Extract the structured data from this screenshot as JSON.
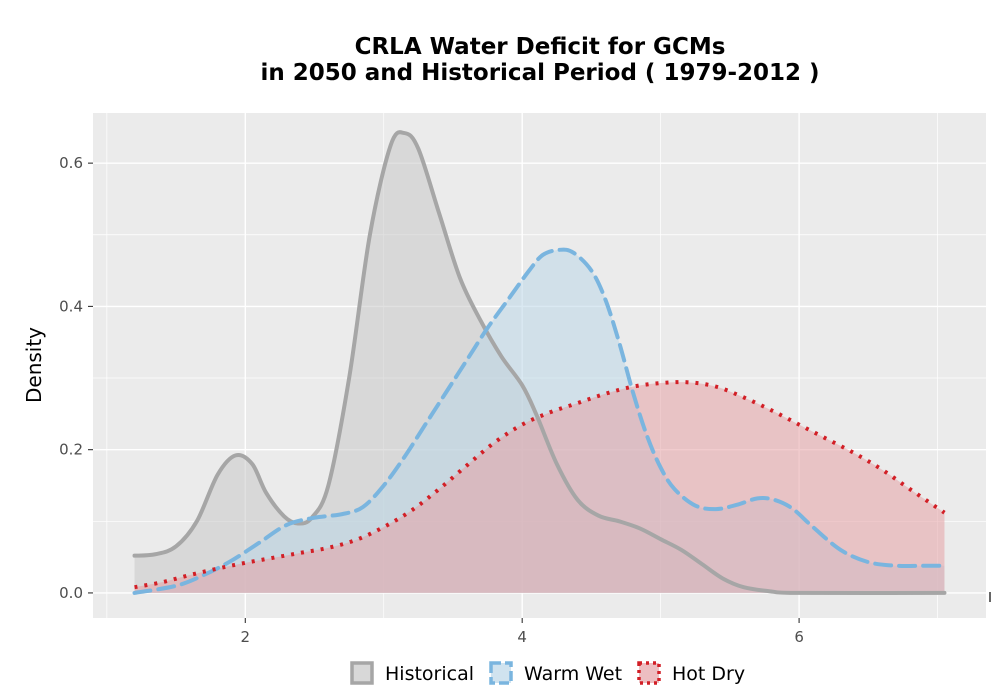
{
  "chart_data": {
    "type": "area",
    "title_line1": "CRLA  Water Deficit for GCMs",
    "title_line2": "in 2050 and Historical Period ( 1979-2012 )",
    "xlabel": "",
    "ylabel": "Density",
    "xlim": [
      0.9,
      7.35
    ],
    "ylim": [
      -0.035,
      0.67
    ],
    "x_ticks": [
      2,
      4,
      6
    ],
    "y_ticks": [
      0.0,
      0.2,
      0.4,
      0.6
    ],
    "x_tick_labels": [
      "2",
      "4",
      "6"
    ],
    "y_tick_labels": [
      "0.0",
      "0.2",
      "0.4",
      "0.6"
    ],
    "grid": true,
    "legend_position": "bottom",
    "series": [
      {
        "name": "Historical",
        "fill": "#c8c8c8",
        "line": "#a6a6a6",
        "linestyle": "solid",
        "points": [
          [
            1.2,
            0.052
          ],
          [
            1.35,
            0.054
          ],
          [
            1.5,
            0.065
          ],
          [
            1.65,
            0.1
          ],
          [
            1.8,
            0.165
          ],
          [
            1.93,
            0.192
          ],
          [
            2.05,
            0.18
          ],
          [
            2.15,
            0.14
          ],
          [
            2.28,
            0.107
          ],
          [
            2.38,
            0.097
          ],
          [
            2.48,
            0.105
          ],
          [
            2.6,
            0.15
          ],
          [
            2.75,
            0.3
          ],
          [
            2.9,
            0.5
          ],
          [
            3.05,
            0.625
          ],
          [
            3.15,
            0.642
          ],
          [
            3.25,
            0.62
          ],
          [
            3.4,
            0.53
          ],
          [
            3.55,
            0.44
          ],
          [
            3.7,
            0.38
          ],
          [
            3.85,
            0.33
          ],
          [
            4.0,
            0.29
          ],
          [
            4.1,
            0.25
          ],
          [
            4.25,
            0.18
          ],
          [
            4.4,
            0.13
          ],
          [
            4.55,
            0.108
          ],
          [
            4.7,
            0.1
          ],
          [
            4.85,
            0.09
          ],
          [
            5.0,
            0.075
          ],
          [
            5.15,
            0.06
          ],
          [
            5.3,
            0.04
          ],
          [
            5.45,
            0.02
          ],
          [
            5.6,
            0.008
          ],
          [
            5.8,
            0.002
          ],
          [
            6.0,
            0.0
          ],
          [
            7.05,
            0.0
          ]
        ]
      },
      {
        "name": "Warm Wet",
        "fill": "#bcd7e8",
        "line": "#7ab5df",
        "linestyle": "dashed",
        "points": [
          [
            1.2,
            0.0
          ],
          [
            1.5,
            0.01
          ],
          [
            1.7,
            0.025
          ],
          [
            1.9,
            0.045
          ],
          [
            2.1,
            0.07
          ],
          [
            2.3,
            0.095
          ],
          [
            2.5,
            0.105
          ],
          [
            2.7,
            0.11
          ],
          [
            2.85,
            0.12
          ],
          [
            3.0,
            0.15
          ],
          [
            3.15,
            0.19
          ],
          [
            3.3,
            0.235
          ],
          [
            3.45,
            0.28
          ],
          [
            3.6,
            0.325
          ],
          [
            3.75,
            0.37
          ],
          [
            3.9,
            0.41
          ],
          [
            4.05,
            0.45
          ],
          [
            4.15,
            0.472
          ],
          [
            4.27,
            0.479
          ],
          [
            4.37,
            0.475
          ],
          [
            4.5,
            0.45
          ],
          [
            4.6,
            0.41
          ],
          [
            4.7,
            0.35
          ],
          [
            4.8,
            0.28
          ],
          [
            4.9,
            0.22
          ],
          [
            5.0,
            0.175
          ],
          [
            5.1,
            0.145
          ],
          [
            5.25,
            0.122
          ],
          [
            5.4,
            0.117
          ],
          [
            5.55,
            0.123
          ],
          [
            5.7,
            0.132
          ],
          [
            5.82,
            0.13
          ],
          [
            5.95,
            0.118
          ],
          [
            6.1,
            0.092
          ],
          [
            6.3,
            0.06
          ],
          [
            6.5,
            0.043
          ],
          [
            6.7,
            0.038
          ],
          [
            6.9,
            0.038
          ],
          [
            7.05,
            0.038
          ]
        ]
      },
      {
        "name": "Hot Dry",
        "fill": "#e5a3a6",
        "line": "#d21f26",
        "linestyle": "dotted",
        "points": [
          [
            1.2,
            0.008
          ],
          [
            1.4,
            0.015
          ],
          [
            1.6,
            0.025
          ],
          [
            1.8,
            0.034
          ],
          [
            2.0,
            0.042
          ],
          [
            2.2,
            0.049
          ],
          [
            2.4,
            0.056
          ],
          [
            2.6,
            0.063
          ],
          [
            2.8,
            0.074
          ],
          [
            3.0,
            0.092
          ],
          [
            3.2,
            0.115
          ],
          [
            3.4,
            0.145
          ],
          [
            3.6,
            0.178
          ],
          [
            3.8,
            0.21
          ],
          [
            4.0,
            0.235
          ],
          [
            4.2,
            0.252
          ],
          [
            4.4,
            0.265
          ],
          [
            4.6,
            0.278
          ],
          [
            4.8,
            0.288
          ],
          [
            5.0,
            0.293
          ],
          [
            5.2,
            0.294
          ],
          [
            5.4,
            0.288
          ],
          [
            5.6,
            0.273
          ],
          [
            5.8,
            0.255
          ],
          [
            6.0,
            0.235
          ],
          [
            6.2,
            0.215
          ],
          [
            6.4,
            0.195
          ],
          [
            6.6,
            0.172
          ],
          [
            6.8,
            0.145
          ],
          [
            7.05,
            0.112
          ]
        ]
      }
    ]
  }
}
